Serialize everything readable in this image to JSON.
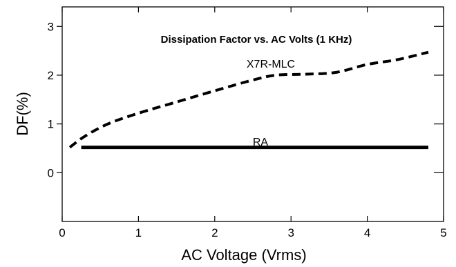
{
  "chart_data": {
    "type": "line",
    "title": "Dissipation Factor vs. AC Volts (1 KHz)",
    "xlabel": "AC Voltage (Vrms)",
    "ylabel": "DF(%)",
    "xlim": [
      0,
      5
    ],
    "ylim": [
      -1,
      3.4
    ],
    "xticks": [
      "0",
      "1",
      "2",
      "3",
      "4",
      "5"
    ],
    "yticks": [
      "0",
      "1",
      "2",
      "3"
    ],
    "grid": false,
    "series": [
      {
        "name": "X7R-MLC",
        "style": "dashed",
        "color": "#000000",
        "x": [
          0.1,
          0.3,
          0.6,
          1.0,
          1.5,
          2.0,
          2.5,
          2.8,
          3.2,
          3.6,
          4.0,
          4.4,
          4.8
        ],
        "y": [
          0.52,
          0.75,
          1.0,
          1.22,
          1.45,
          1.68,
          1.9,
          2.0,
          2.02,
          2.06,
          2.22,
          2.32,
          2.47
        ]
      },
      {
        "name": "RA",
        "style": "solid",
        "color": "#000000",
        "x": [
          0.25,
          4.8
        ],
        "y": [
          0.52,
          0.52
        ]
      }
    ]
  }
}
